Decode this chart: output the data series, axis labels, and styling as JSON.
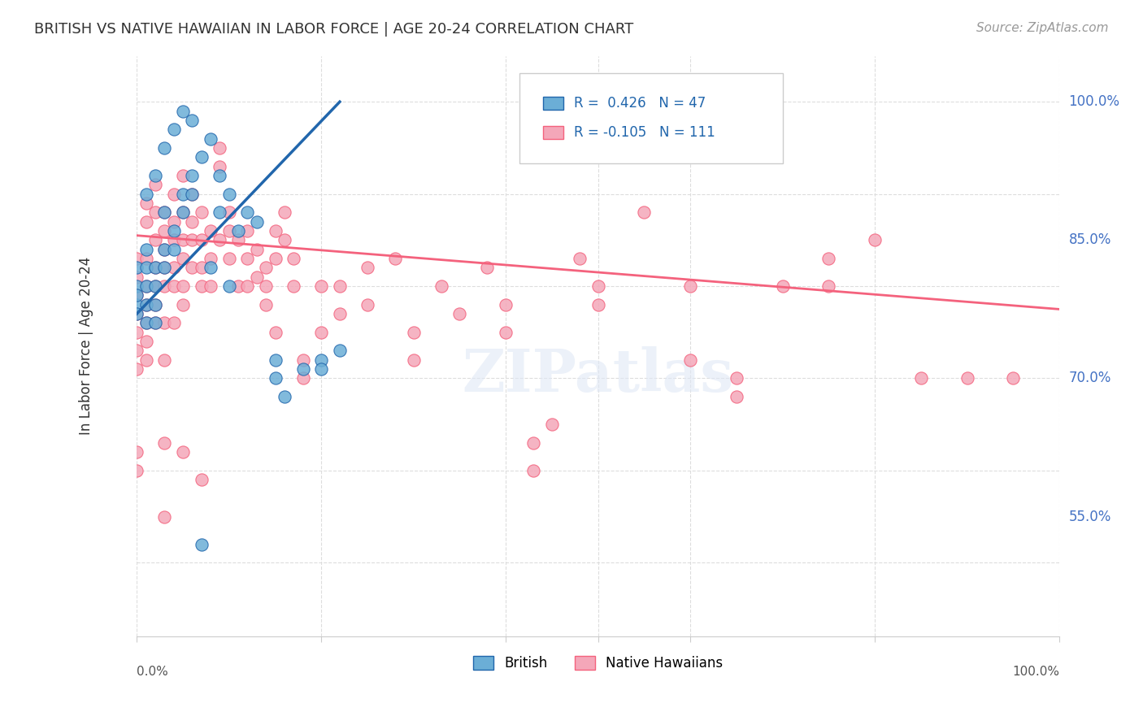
{
  "title": "BRITISH VS NATIVE HAWAIIAN IN LABOR FORCE | AGE 20-24 CORRELATION CHART",
  "source": "Source: ZipAtlas.com",
  "ylabel": "In Labor Force | Age 20-24",
  "y_tick_labels": [
    "100.0%",
    "85.0%",
    "70.0%",
    "55.0%"
  ],
  "y_tick_values": [
    1.0,
    0.85,
    0.7,
    0.55
  ],
  "xlim": [
    0.0,
    1.0
  ],
  "ylim": [
    0.42,
    1.05
  ],
  "blue_color": "#6baed6",
  "pink_color": "#f4a7b9",
  "blue_line_color": "#2166ac",
  "pink_line_color": "#f4627d",
  "watermark": "ZIPatlas",
  "british_points": [
    [
      0.0,
      0.78
    ],
    [
      0.0,
      0.82
    ],
    [
      0.0,
      0.8
    ],
    [
      0.0,
      0.79
    ],
    [
      0.0,
      0.77
    ],
    [
      0.01,
      0.84
    ],
    [
      0.01,
      0.82
    ],
    [
      0.01,
      0.8
    ],
    [
      0.01,
      0.78
    ],
    [
      0.01,
      0.76
    ],
    [
      0.02,
      0.82
    ],
    [
      0.02,
      0.8
    ],
    [
      0.02,
      0.78
    ],
    [
      0.02,
      0.76
    ],
    [
      0.03,
      0.88
    ],
    [
      0.03,
      0.84
    ],
    [
      0.03,
      0.82
    ],
    [
      0.04,
      0.86
    ],
    [
      0.04,
      0.84
    ],
    [
      0.05,
      0.9
    ],
    [
      0.05,
      0.88
    ],
    [
      0.06,
      0.92
    ],
    [
      0.06,
      0.9
    ],
    [
      0.07,
      0.94
    ],
    [
      0.08,
      0.96
    ],
    [
      0.09,
      0.92
    ],
    [
      0.1,
      0.9
    ],
    [
      0.12,
      0.88
    ],
    [
      0.13,
      0.87
    ],
    [
      0.15,
      0.72
    ],
    [
      0.15,
      0.7
    ],
    [
      0.16,
      0.68
    ],
    [
      0.18,
      0.71
    ],
    [
      0.2,
      0.72
    ],
    [
      0.2,
      0.71
    ],
    [
      0.22,
      0.73
    ],
    [
      0.03,
      0.95
    ],
    [
      0.04,
      0.97
    ],
    [
      0.05,
      0.99
    ],
    [
      0.06,
      0.98
    ],
    [
      0.02,
      0.92
    ],
    [
      0.01,
      0.9
    ],
    [
      0.08,
      0.82
    ],
    [
      0.1,
      0.8
    ],
    [
      0.07,
      0.52
    ],
    [
      0.09,
      0.88
    ],
    [
      0.11,
      0.86
    ]
  ],
  "native_hawaiian_points": [
    [
      0.0,
      0.83
    ],
    [
      0.0,
      0.81
    ],
    [
      0.0,
      0.79
    ],
    [
      0.0,
      0.77
    ],
    [
      0.0,
      0.75
    ],
    [
      0.0,
      0.73
    ],
    [
      0.0,
      0.71
    ],
    [
      0.0,
      0.62
    ],
    [
      0.0,
      0.6
    ],
    [
      0.01,
      0.89
    ],
    [
      0.01,
      0.87
    ],
    [
      0.01,
      0.83
    ],
    [
      0.01,
      0.8
    ],
    [
      0.01,
      0.78
    ],
    [
      0.01,
      0.76
    ],
    [
      0.01,
      0.74
    ],
    [
      0.01,
      0.72
    ],
    [
      0.02,
      0.91
    ],
    [
      0.02,
      0.88
    ],
    [
      0.02,
      0.85
    ],
    [
      0.02,
      0.82
    ],
    [
      0.02,
      0.8
    ],
    [
      0.02,
      0.78
    ],
    [
      0.02,
      0.76
    ],
    [
      0.03,
      0.88
    ],
    [
      0.03,
      0.86
    ],
    [
      0.03,
      0.84
    ],
    [
      0.03,
      0.82
    ],
    [
      0.03,
      0.8
    ],
    [
      0.03,
      0.76
    ],
    [
      0.03,
      0.72
    ],
    [
      0.03,
      0.63
    ],
    [
      0.04,
      0.9
    ],
    [
      0.04,
      0.87
    ],
    [
      0.04,
      0.85
    ],
    [
      0.04,
      0.82
    ],
    [
      0.04,
      0.8
    ],
    [
      0.04,
      0.76
    ],
    [
      0.05,
      0.92
    ],
    [
      0.05,
      0.88
    ],
    [
      0.05,
      0.85
    ],
    [
      0.05,
      0.83
    ],
    [
      0.05,
      0.8
    ],
    [
      0.05,
      0.78
    ],
    [
      0.05,
      0.62
    ],
    [
      0.06,
      0.9
    ],
    [
      0.06,
      0.87
    ],
    [
      0.06,
      0.85
    ],
    [
      0.06,
      0.82
    ],
    [
      0.07,
      0.88
    ],
    [
      0.07,
      0.85
    ],
    [
      0.07,
      0.82
    ],
    [
      0.07,
      0.8
    ],
    [
      0.08,
      0.86
    ],
    [
      0.08,
      0.83
    ],
    [
      0.08,
      0.8
    ],
    [
      0.09,
      0.95
    ],
    [
      0.09,
      0.93
    ],
    [
      0.09,
      0.85
    ],
    [
      0.1,
      0.88
    ],
    [
      0.1,
      0.86
    ],
    [
      0.1,
      0.83
    ],
    [
      0.11,
      0.85
    ],
    [
      0.11,
      0.8
    ],
    [
      0.12,
      0.86
    ],
    [
      0.12,
      0.83
    ],
    [
      0.12,
      0.8
    ],
    [
      0.13,
      0.84
    ],
    [
      0.13,
      0.81
    ],
    [
      0.14,
      0.82
    ],
    [
      0.14,
      0.8
    ],
    [
      0.14,
      0.78
    ],
    [
      0.15,
      0.86
    ],
    [
      0.15,
      0.83
    ],
    [
      0.15,
      0.75
    ],
    [
      0.16,
      0.88
    ],
    [
      0.16,
      0.85
    ],
    [
      0.17,
      0.83
    ],
    [
      0.17,
      0.8
    ],
    [
      0.18,
      0.72
    ],
    [
      0.18,
      0.7
    ],
    [
      0.2,
      0.8
    ],
    [
      0.2,
      0.75
    ],
    [
      0.22,
      0.8
    ],
    [
      0.22,
      0.77
    ],
    [
      0.25,
      0.82
    ],
    [
      0.25,
      0.78
    ],
    [
      0.28,
      0.83
    ],
    [
      0.3,
      0.75
    ],
    [
      0.3,
      0.72
    ],
    [
      0.33,
      0.8
    ],
    [
      0.35,
      0.77
    ],
    [
      0.38,
      0.82
    ],
    [
      0.4,
      0.78
    ],
    [
      0.4,
      0.75
    ],
    [
      0.43,
      0.63
    ],
    [
      0.43,
      0.6
    ],
    [
      0.45,
      0.65
    ],
    [
      0.48,
      0.83
    ],
    [
      0.5,
      0.8
    ],
    [
      0.5,
      0.78
    ],
    [
      0.55,
      0.88
    ],
    [
      0.6,
      0.8
    ],
    [
      0.6,
      0.72
    ],
    [
      0.65,
      0.7
    ],
    [
      0.65,
      0.68
    ],
    [
      0.7,
      0.8
    ],
    [
      0.75,
      0.83
    ],
    [
      0.75,
      0.8
    ],
    [
      0.8,
      0.85
    ],
    [
      0.85,
      0.7
    ],
    [
      0.9,
      0.7
    ],
    [
      0.95,
      0.7
    ],
    [
      0.03,
      0.55
    ],
    [
      0.07,
      0.59
    ]
  ],
  "blue_trend_x": [
    0.0,
    0.22
  ],
  "blue_trend_y_start": 0.77,
  "blue_trend_y_end": 1.0,
  "pink_trend_x": [
    0.0,
    1.0
  ],
  "pink_trend_y_start": 0.855,
  "pink_trend_y_end": 0.775
}
